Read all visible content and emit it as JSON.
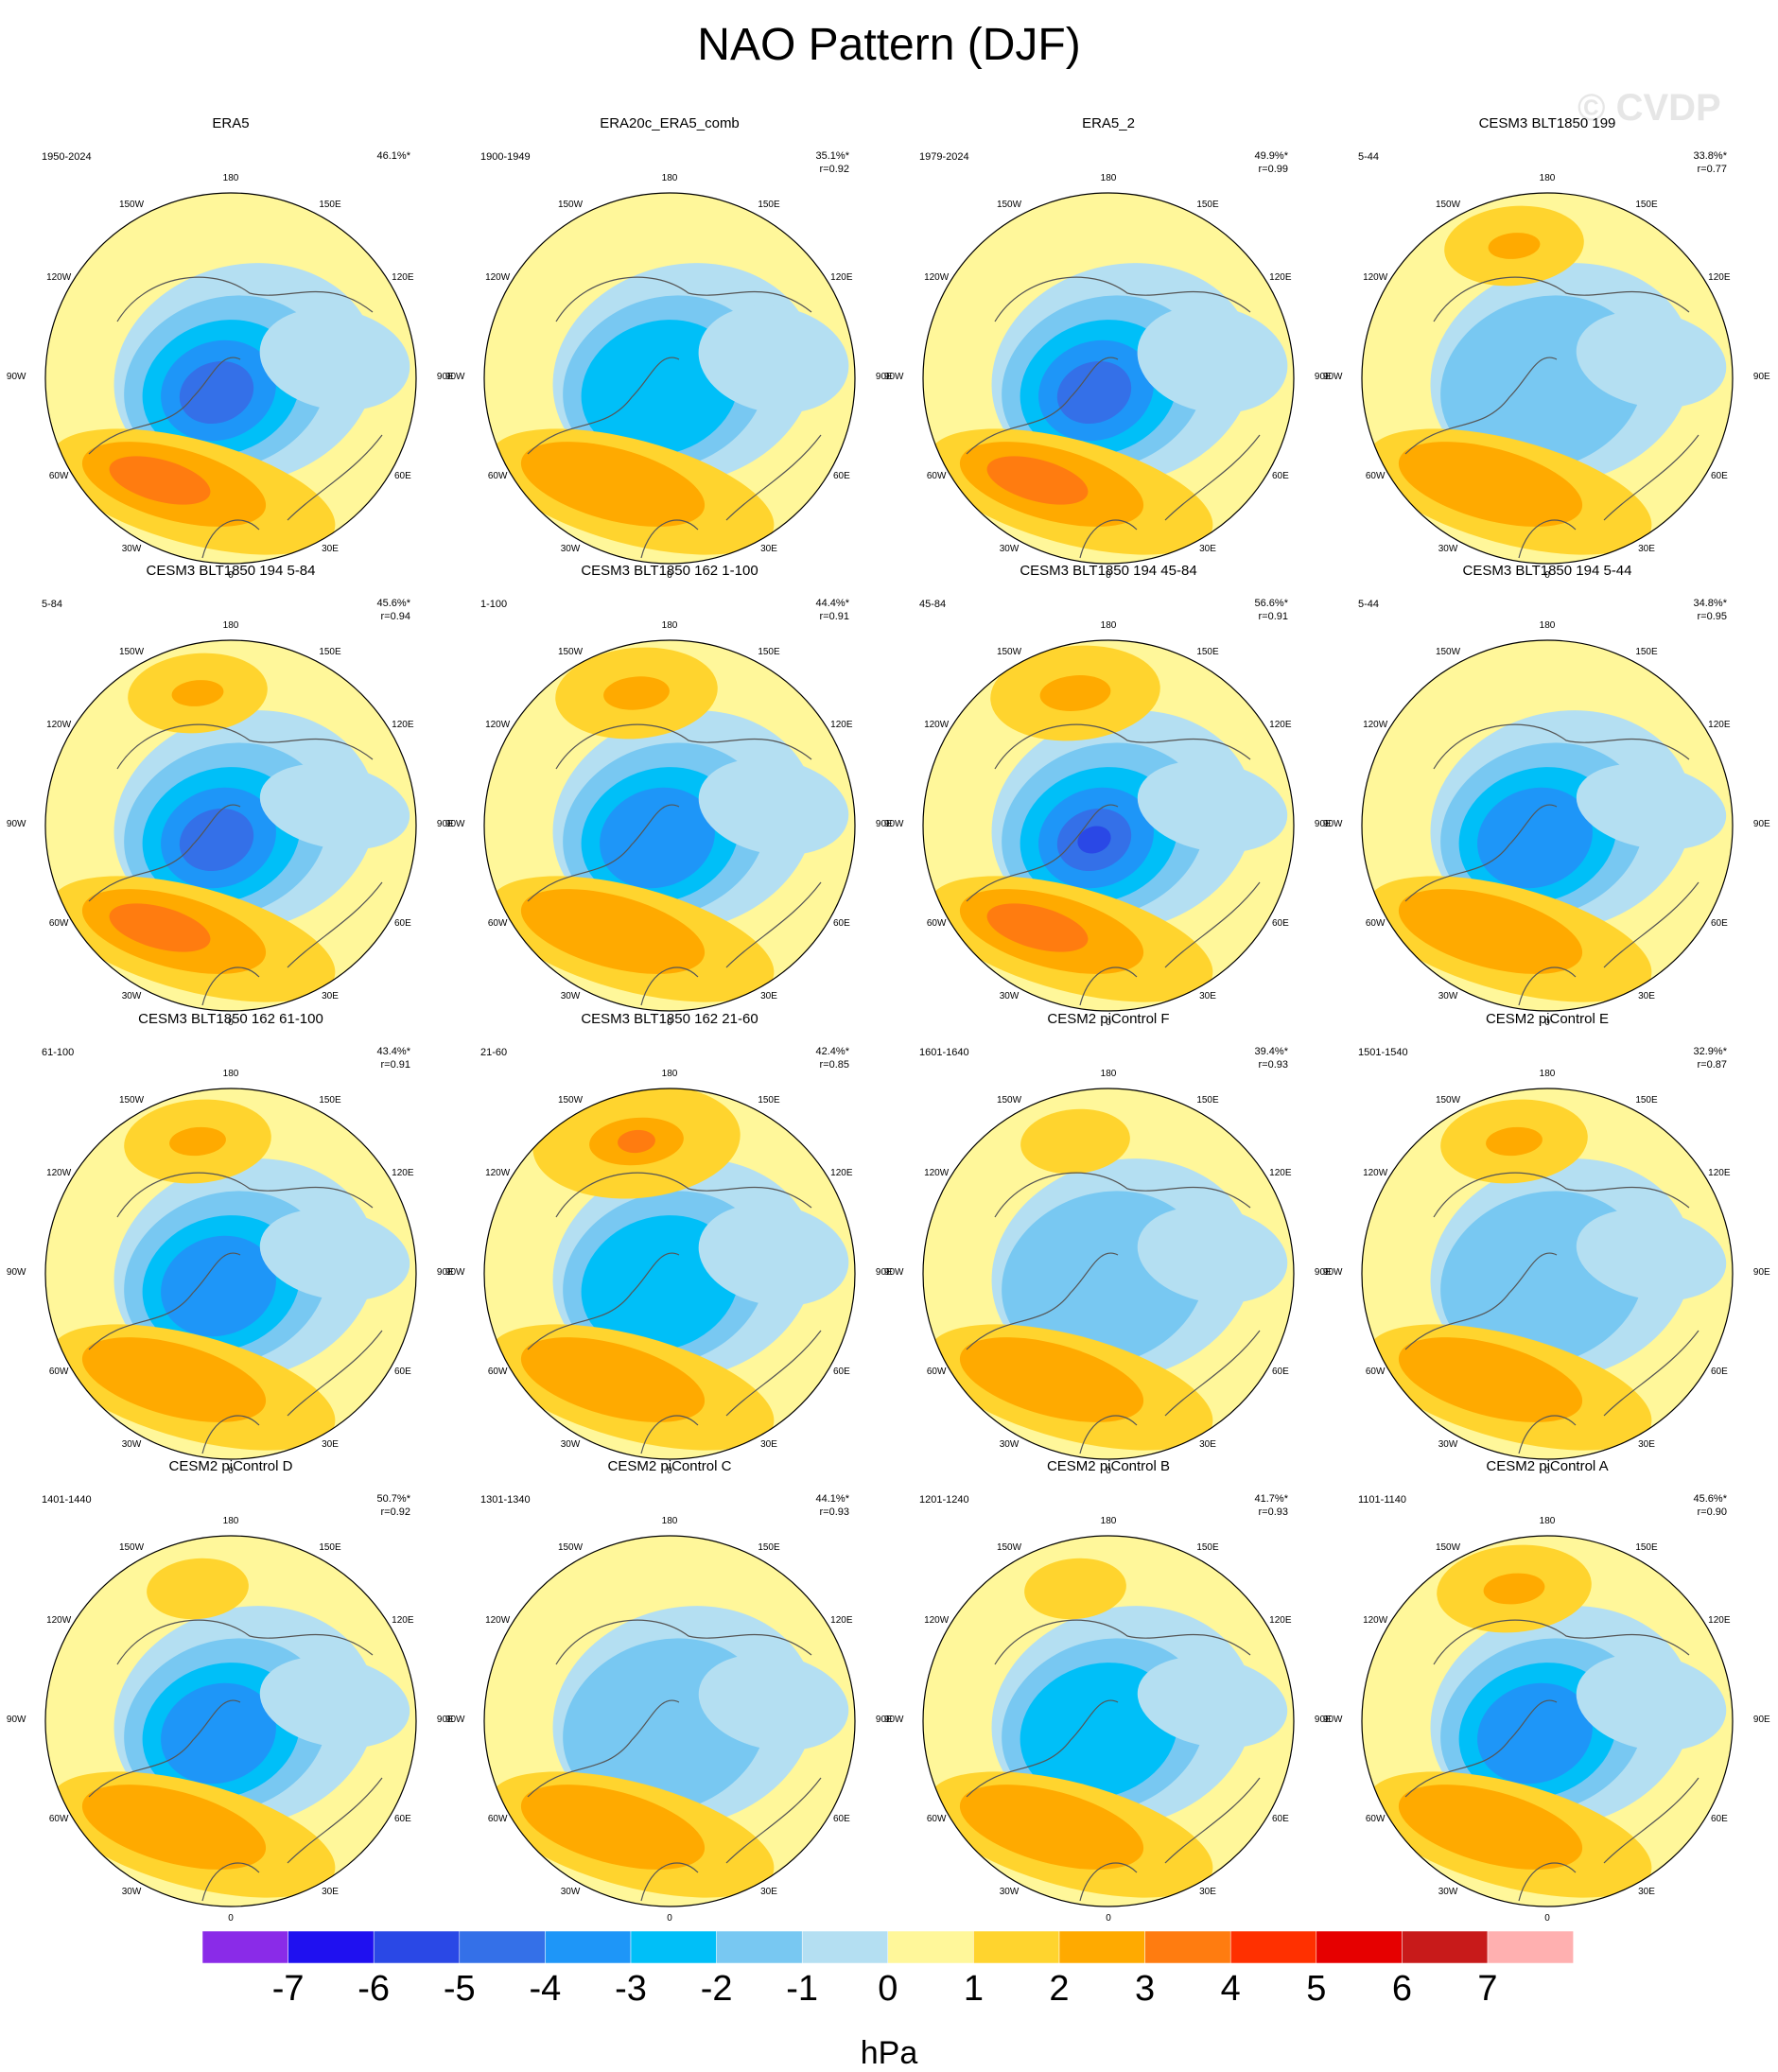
{
  "title": "NAO Pattern (DJF)",
  "watermark": "© CVDP",
  "longitude_labels": [
    "180",
    "150E",
    "120E",
    "90E",
    "60E",
    "30E",
    "0",
    "30W",
    "60W",
    "90W",
    "120W",
    "150W"
  ],
  "panels": [
    {
      "title": "ERA5",
      "period": "1950-2024",
      "variance": "46.1%*",
      "corr": "",
      "amp": 1.15,
      "pac": 0.0,
      "eurasia": 0.55
    },
    {
      "title": "ERA20c_ERA5_comb",
      "period": "1900-1949",
      "variance": "35.1%*",
      "corr": "r=0.92",
      "amp": 0.9,
      "pac": 0.0,
      "eurasia": 0.6
    },
    {
      "title": "ERA5_2",
      "period": "1979-2024",
      "variance": "49.9%*",
      "corr": "r=0.99",
      "amp": 1.1,
      "pac": 0.0,
      "eurasia": 0.6
    },
    {
      "title": "CESM3 BLT1850 199",
      "period": "5-44",
      "variance": "33.8%*",
      "corr": "r=0.77",
      "amp": 0.85,
      "pac": 0.55,
      "eurasia": 0.5
    },
    {
      "title": "CESM3 BLT1850 194 5-84",
      "period": "5-84",
      "variance": "45.6%*",
      "corr": "r=0.94",
      "amp": 1.05,
      "pac": 0.55,
      "eurasia": 0.4
    },
    {
      "title": "CESM3 BLT1850 162 1-100",
      "period": "1-100",
      "variance": "44.4%*",
      "corr": "r=0.91",
      "amp": 1.0,
      "pac": 0.7,
      "eurasia": 0.5
    },
    {
      "title": "CESM3 BLT1850 194 45-84",
      "period": "45-84",
      "variance": "56.6%*",
      "corr": "r=0.91",
      "amp": 1.25,
      "pac": 0.75,
      "eurasia": 0.45
    },
    {
      "title": "CESM3 BLT1850 194 5-44",
      "period": "5-44",
      "variance": "34.8%*",
      "corr": "r=0.95",
      "amp": 0.95,
      "pac": 0.0,
      "eurasia": 0.4
    },
    {
      "title": "CESM3 BLT1850 162 61-100",
      "period": "61-100",
      "variance": "43.4%*",
      "corr": "r=0.91",
      "amp": 1.0,
      "pac": 0.6,
      "eurasia": 0.45
    },
    {
      "title": "CESM3 BLT1850 162 21-60",
      "period": "21-60",
      "variance": "42.4%*",
      "corr": "r=0.85",
      "amp": 0.9,
      "pac": 1.0,
      "eurasia": 0.55
    },
    {
      "title": "CESM2 piControl F",
      "period": "1601-1640",
      "variance": "39.4%*",
      "corr": "r=0.93",
      "amp": 0.85,
      "pac": 0.35,
      "eurasia": 0.5
    },
    {
      "title": "CESM2 piControl E",
      "period": "1501-1540",
      "variance": "32.9%*",
      "corr": "r=0.87",
      "amp": 0.85,
      "pac": 0.6,
      "eurasia": 0.45
    },
    {
      "title": "CESM2 piControl D",
      "period": "1401-1440",
      "variance": "50.7%*",
      "corr": "r=0.92",
      "amp": 0.95,
      "pac": 0.3,
      "eurasia": 0.45
    },
    {
      "title": "CESM2 piControl C",
      "period": "1301-1340",
      "variance": "44.1%*",
      "corr": "r=0.93",
      "amp": 0.85,
      "pac": 0.0,
      "eurasia": 0.5
    },
    {
      "title": "CESM2 piControl B",
      "period": "1201-1240",
      "variance": "41.7%*",
      "corr": "r=0.93",
      "amp": 0.9,
      "pac": 0.3,
      "eurasia": 0.45
    },
    {
      "title": "CESM2 piControl A",
      "period": "1101-1140",
      "variance": "45.6%*",
      "corr": "r=0.90",
      "amp": 0.95,
      "pac": 0.65,
      "eurasia": 0.5
    }
  ],
  "colorbar": {
    "unit": "hPa",
    "labels": [
      "-7",
      "-6",
      "-5",
      "-4",
      "-3",
      "-2",
      "-1",
      "0",
      "1",
      "2",
      "3",
      "4",
      "5",
      "6",
      "7"
    ],
    "colors": [
      "#8a2be8",
      "#1f10f0",
      "#2a48e6",
      "#3470e8",
      "#1e96f8",
      "#00bff8",
      "#78c8f2",
      "#b4dff2",
      "#fff79a",
      "#ffd42e",
      "#ffaa00",
      "#ff7c10",
      "#ff3000",
      "#e60000",
      "#c81a1a",
      "#ffb0b0"
    ]
  }
}
